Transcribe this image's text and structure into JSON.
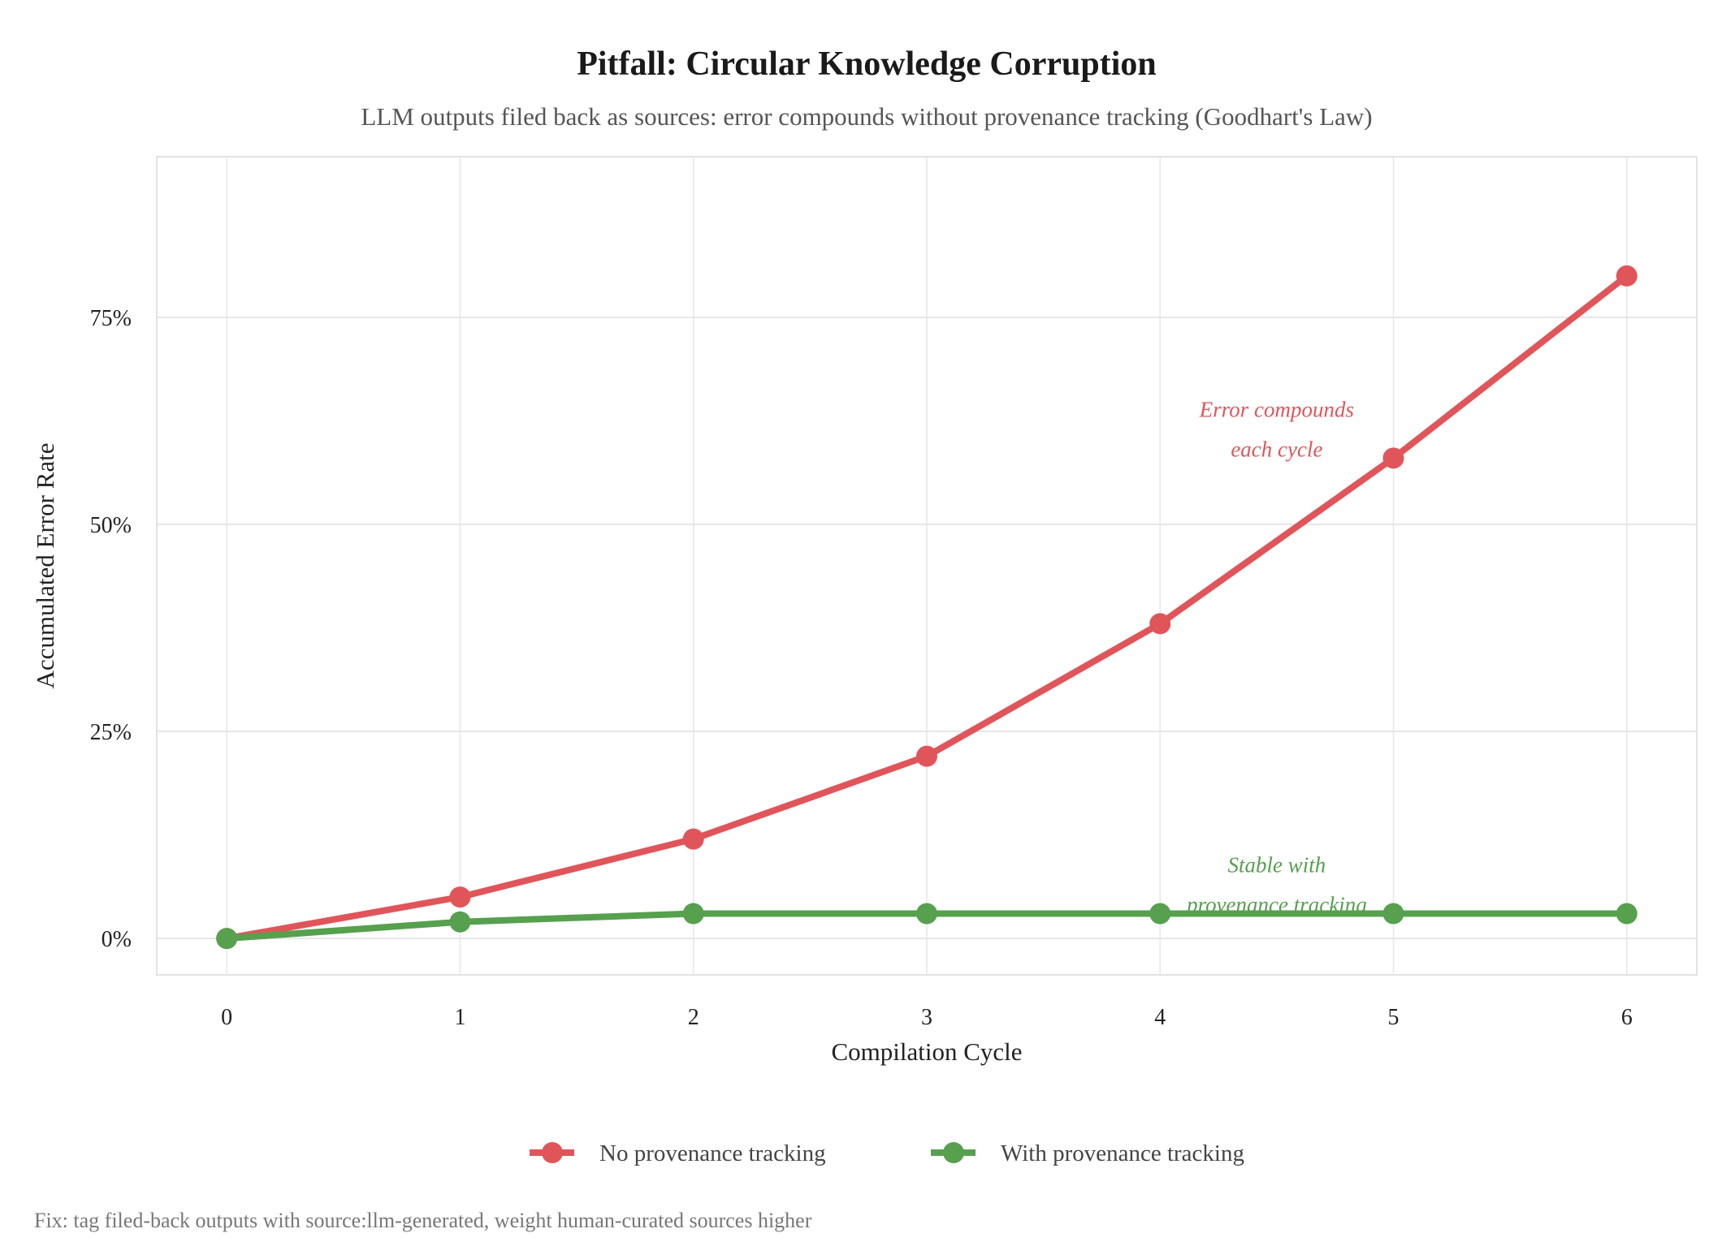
{
  "chart_data": {
    "type": "line",
    "title": "Pitfall: Circular Knowledge Corruption",
    "subtitle": "LLM outputs filed back as sources: error compounds without provenance tracking (Goodhart's Law)",
    "xlabel": "Compilation Cycle",
    "ylabel": "Accumulated Error Rate",
    "x": [
      0,
      1,
      2,
      3,
      4,
      5,
      6
    ],
    "x_ticks": [
      "0",
      "1",
      "2",
      "3",
      "4",
      "5",
      "6"
    ],
    "y_ticks": [
      {
        "value": 0,
        "label": "0%"
      },
      {
        "value": 25,
        "label": "25%"
      },
      {
        "value": 50,
        "label": "50%"
      },
      {
        "value": 75,
        "label": "75%"
      }
    ],
    "xlim": [
      -0.3,
      6.3
    ],
    "ylim": [
      -4.4,
      94.4
    ],
    "grid": true,
    "legend_position": "bottom",
    "series": [
      {
        "name": "No provenance tracking",
        "color": "#E0555A",
        "values": [
          0,
          5,
          12,
          22,
          38,
          58,
          80
        ]
      },
      {
        "name": "With provenance tracking",
        "color": "#56A04E",
        "values": [
          0,
          2,
          3,
          3,
          3,
          3,
          3
        ]
      }
    ],
    "annotations": [
      {
        "lines": [
          "Error compounds",
          "each cycle"
        ],
        "x": 4.5,
        "y": 63,
        "color": "#E0555A"
      },
      {
        "lines": [
          "Stable with",
          "provenance tracking"
        ],
        "x": 4.5,
        "y": 8,
        "color": "#56A04E"
      }
    ],
    "caption": "Fix: tag filed-back outputs with source:llm-generated, weight human-curated sources higher"
  }
}
